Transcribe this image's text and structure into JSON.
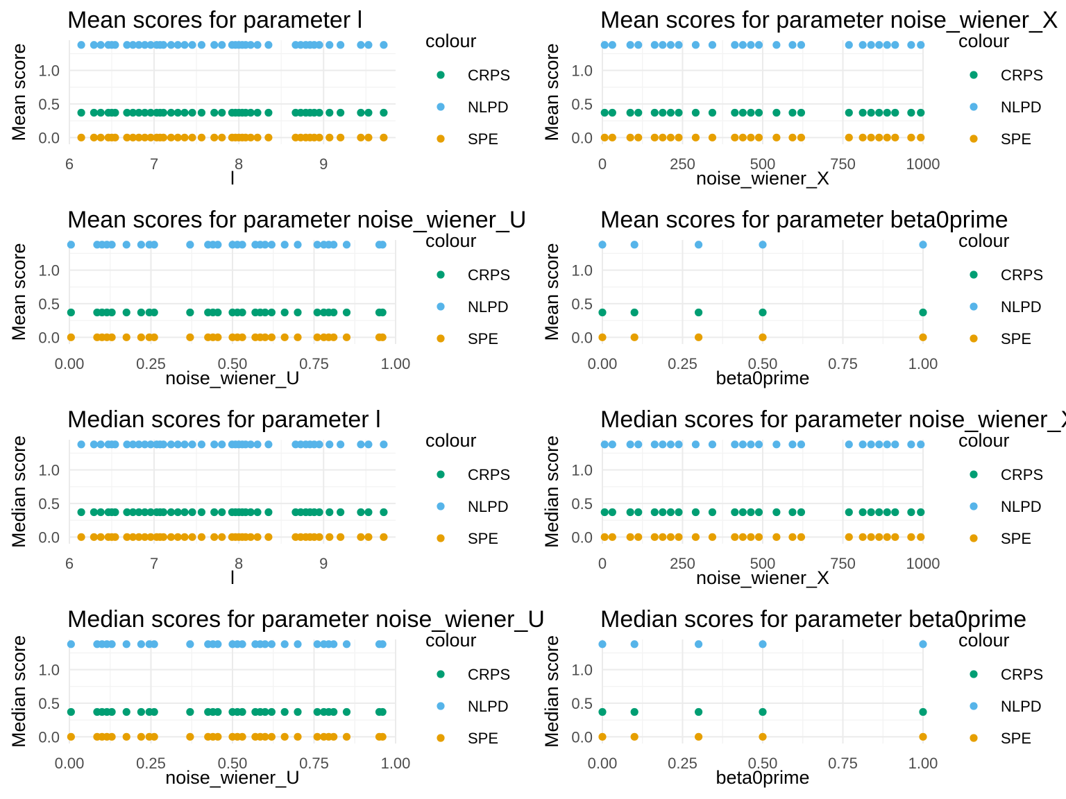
{
  "legend": {
    "title": "colour",
    "entries": [
      {
        "label": "CRPS",
        "color": "#009E73"
      },
      {
        "label": "NLPD",
        "color": "#56B4E9"
      },
      {
        "label": "SPE",
        "color": "#E69F00"
      }
    ]
  },
  "series_levels": {
    "CRPS": 0.37,
    "NLPD": 1.38,
    "SPE": 0.0
  },
  "chart_data": [
    {
      "type": "scatter",
      "title": "Mean scores for parameter l",
      "xlabel": "l",
      "ylabel": "Mean score",
      "xlim": [
        6,
        9.85
      ],
      "ylim": [
        -0.1,
        1.45
      ],
      "xticks": [
        "6",
        "7",
        "8",
        "9"
      ],
      "xtick_values": [
        6,
        7,
        8,
        9
      ],
      "yticks": [
        "0.0",
        "0.5",
        "1.0"
      ],
      "ytick_values": [
        0,
        0.5,
        1.0
      ],
      "x": [
        6.14,
        6.29,
        6.37,
        6.46,
        6.5,
        6.54,
        6.68,
        6.75,
        6.82,
        6.89,
        6.96,
        7.03,
        7.07,
        7.11,
        7.2,
        7.28,
        7.36,
        7.45,
        7.56,
        7.71,
        7.8,
        7.92,
        7.96,
        8.0,
        8.04,
        8.08,
        8.14,
        8.22,
        8.35,
        8.67,
        8.73,
        8.79,
        8.84,
        8.89,
        8.95,
        9.07,
        9.2,
        9.44,
        9.53,
        9.71
      ]
    },
    {
      "type": "scatter",
      "title": "Mean scores for parameter noise_wiener_X",
      "xlabel": "noise_wiener_X",
      "ylabel": "Mean score",
      "xlim": [
        0,
        1000
      ],
      "ylim": [
        -0.1,
        1.45
      ],
      "xticks": [
        "0",
        "250",
        "500",
        "750",
        "1000"
      ],
      "xtick_values": [
        0,
        250,
        500,
        750,
        1000
      ],
      "yticks": [
        "0.0",
        "0.5",
        "1.0"
      ],
      "ytick_values": [
        0,
        0.5,
        1.0
      ],
      "x": [
        7,
        31,
        87,
        112,
        163,
        188,
        213,
        238,
        291,
        343,
        413,
        438,
        463,
        488,
        543,
        593,
        620,
        769,
        812,
        838,
        863,
        888,
        913,
        963,
        993
      ]
    },
    {
      "type": "scatter",
      "title": "Mean scores for parameter noise_wiener_U",
      "xlabel": "noise_wiener_U",
      "ylabel": "Mean score",
      "xlim": [
        0,
        1.0
      ],
      "ylim": [
        -0.1,
        1.45
      ],
      "xticks": [
        "0.00",
        "0.25",
        "0.50",
        "0.75",
        "1.00"
      ],
      "xtick_values": [
        0,
        0.25,
        0.5,
        0.75,
        1.0
      ],
      "yticks": [
        "0.0",
        "0.5",
        "1.0"
      ],
      "ytick_values": [
        0,
        0.5,
        1.0
      ],
      "x": [
        0.005,
        0.085,
        0.1,
        0.115,
        0.13,
        0.175,
        0.22,
        0.245,
        0.26,
        0.37,
        0.425,
        0.44,
        0.455,
        0.5,
        0.515,
        0.53,
        0.57,
        0.585,
        0.6,
        0.62,
        0.66,
        0.7,
        0.76,
        0.78,
        0.795,
        0.81,
        0.85,
        0.95,
        0.96
      ]
    },
    {
      "type": "scatter",
      "title": "Mean scores for parameter beta0prime",
      "xlabel": "beta0prime",
      "ylabel": "Mean score",
      "xlim": [
        0,
        1.0
      ],
      "ylim": [
        -0.1,
        1.45
      ],
      "xticks": [
        "0.00",
        "0.25",
        "0.50",
        "0.75",
        "1.00"
      ],
      "xtick_values": [
        0,
        0.25,
        0.5,
        0.75,
        1.0
      ],
      "yticks": [
        "0.0",
        "0.5",
        "1.0"
      ],
      "ytick_values": [
        0,
        0.5,
        1.0
      ],
      "x": [
        0.0,
        0.1,
        0.3,
        0.5,
        1.0
      ]
    },
    {
      "type": "scatter",
      "title": "Median scores for parameter l",
      "xlabel": "l",
      "ylabel": "Median score",
      "xlim": [
        6,
        9.85
      ],
      "ylim": [
        -0.1,
        1.45
      ],
      "xticks": [
        "6",
        "7",
        "8",
        "9"
      ],
      "xtick_values": [
        6,
        7,
        8,
        9
      ],
      "yticks": [
        "0.0",
        "0.5",
        "1.0"
      ],
      "ytick_values": [
        0,
        0.5,
        1.0
      ],
      "x": [
        6.14,
        6.29,
        6.37,
        6.46,
        6.5,
        6.54,
        6.68,
        6.75,
        6.82,
        6.89,
        6.96,
        7.03,
        7.07,
        7.11,
        7.2,
        7.28,
        7.36,
        7.45,
        7.56,
        7.71,
        7.8,
        7.92,
        7.96,
        8.0,
        8.04,
        8.08,
        8.14,
        8.22,
        8.35,
        8.67,
        8.73,
        8.79,
        8.84,
        8.89,
        8.95,
        9.07,
        9.2,
        9.44,
        9.53,
        9.71
      ]
    },
    {
      "type": "scatter",
      "title": "Median scores for parameter noise_wiener_X",
      "xlabel": "noise_wiener_X",
      "ylabel": "Median score",
      "xlim": [
        0,
        1000
      ],
      "ylim": [
        -0.1,
        1.45
      ],
      "xticks": [
        "0",
        "250",
        "500",
        "750",
        "1000"
      ],
      "xtick_values": [
        0,
        250,
        500,
        750,
        1000
      ],
      "yticks": [
        "0.0",
        "0.5",
        "1.0"
      ],
      "ytick_values": [
        0,
        0.5,
        1.0
      ],
      "x": [
        7,
        31,
        87,
        112,
        163,
        188,
        213,
        238,
        291,
        343,
        413,
        438,
        463,
        488,
        543,
        593,
        620,
        769,
        812,
        838,
        863,
        888,
        913,
        963,
        993
      ]
    },
    {
      "type": "scatter",
      "title": "Median scores for parameter noise_wiener_U",
      "xlabel": "noise_wiener_U",
      "ylabel": "Median score",
      "xlim": [
        0,
        1.0
      ],
      "ylim": [
        -0.1,
        1.45
      ],
      "xticks": [
        "0.00",
        "0.25",
        "0.50",
        "0.75",
        "1.00"
      ],
      "xtick_values": [
        0,
        0.25,
        0.5,
        0.75,
        1.0
      ],
      "yticks": [
        "0.0",
        "0.5",
        "1.0"
      ],
      "ytick_values": [
        0,
        0.5,
        1.0
      ],
      "x": [
        0.005,
        0.085,
        0.1,
        0.115,
        0.13,
        0.175,
        0.22,
        0.245,
        0.26,
        0.37,
        0.425,
        0.44,
        0.455,
        0.5,
        0.515,
        0.53,
        0.57,
        0.585,
        0.6,
        0.62,
        0.66,
        0.7,
        0.76,
        0.78,
        0.795,
        0.81,
        0.85,
        0.95,
        0.96
      ]
    },
    {
      "type": "scatter",
      "title": "Median scores for parameter beta0prime",
      "xlabel": "beta0prime",
      "ylabel": "Median score",
      "xlim": [
        0,
        1.0
      ],
      "ylim": [
        -0.1,
        1.45
      ],
      "xticks": [
        "0.00",
        "0.25",
        "0.50",
        "0.75",
        "1.00"
      ],
      "xtick_values": [
        0,
        0.25,
        0.5,
        0.75,
        1.0
      ],
      "yticks": [
        "0.0",
        "0.5",
        "1.0"
      ],
      "ytick_values": [
        0,
        0.5,
        1.0
      ],
      "x": [
        0.0,
        0.1,
        0.3,
        0.5,
        1.0
      ]
    }
  ]
}
